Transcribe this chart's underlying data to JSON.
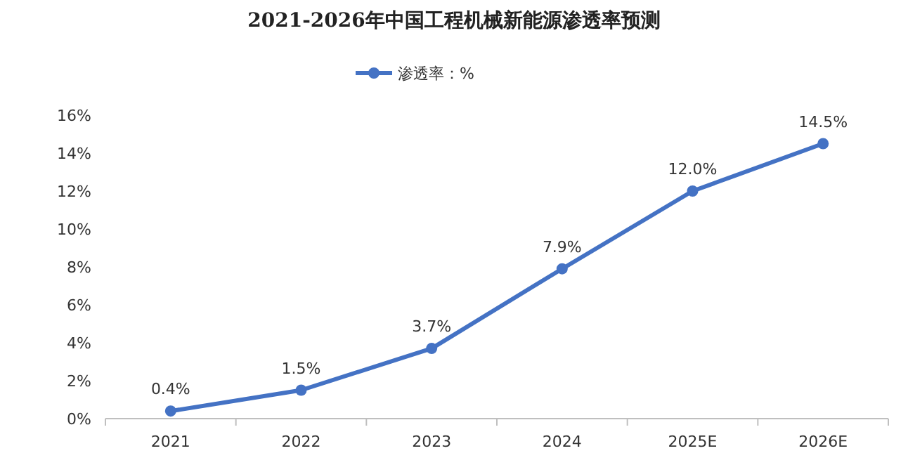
{
  "chart_data": {
    "type": "line",
    "title": "2021-2026年中国工程机械新能源渗透率预测",
    "categories": [
      "2021",
      "2022",
      "2023",
      "2024",
      "2025E",
      "2026E"
    ],
    "series": [
      {
        "name": "渗透率：%",
        "color": "#4472c4",
        "values": [
          0.4,
          1.5,
          3.7,
          7.9,
          12.0,
          14.5
        ],
        "value_labels": [
          "0.4%",
          "1.5%",
          "3.7%",
          "7.9%",
          "12.0%",
          "14.5%"
        ]
      }
    ],
    "ylim": [
      0,
      16
    ],
    "yticks": [
      {
        "value": 0,
        "label": "0%"
      },
      {
        "value": 2,
        "label": "2%"
      },
      {
        "value": 4,
        "label": "4%"
      },
      {
        "value": 6,
        "label": "6%"
      },
      {
        "value": 8,
        "label": "8%"
      },
      {
        "value": 10,
        "label": "10%"
      },
      {
        "value": 12,
        "label": "12%"
      },
      {
        "value": 14,
        "label": "14%"
      },
      {
        "value": 16,
        "label": "16%"
      }
    ],
    "legend": "top",
    "marker": "circle",
    "grid": false
  }
}
